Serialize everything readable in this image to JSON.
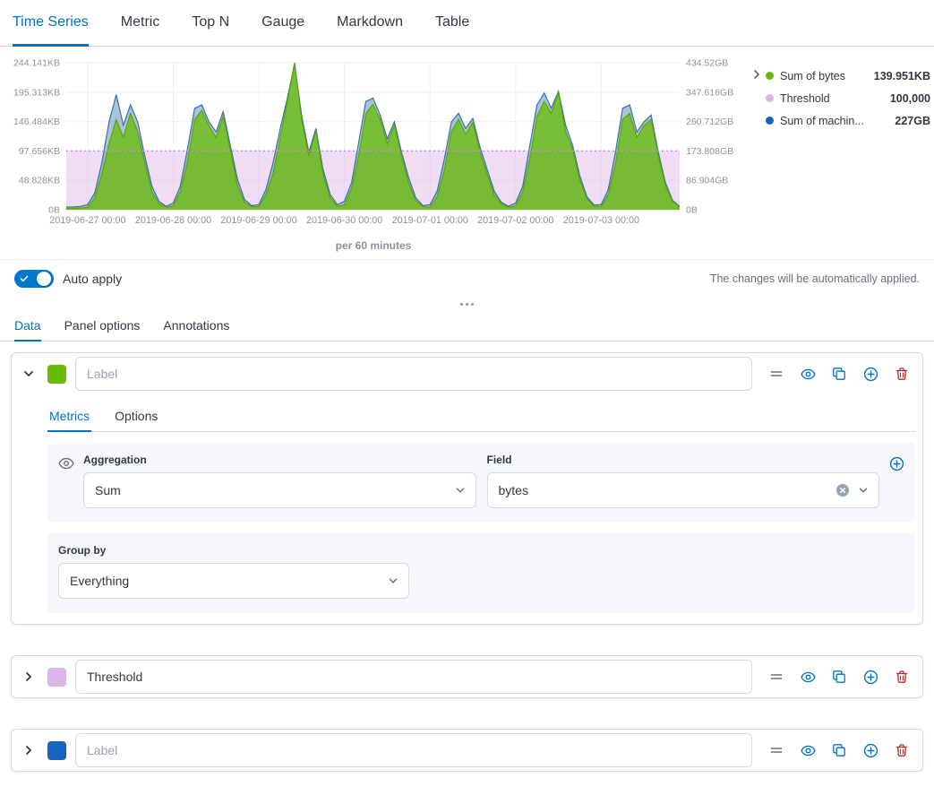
{
  "top_tabs": {
    "items": [
      {
        "label": "Time Series"
      },
      {
        "label": "Metric"
      },
      {
        "label": "Top N"
      },
      {
        "label": "Gauge"
      },
      {
        "label": "Markdown"
      },
      {
        "label": "Table"
      }
    ],
    "active": "Time Series"
  },
  "chart": {
    "caption": "per 60 minutes",
    "legend": {
      "items": [
        {
          "label": "Sum of bytes",
          "value": "139.951KB",
          "color": "#68BC00"
        },
        {
          "label": "Threshold",
          "value": "100,000",
          "color": "#DDB4E6"
        },
        {
          "label": "Sum of machin...",
          "value": "227GB",
          "color": "#1564C0"
        }
      ]
    }
  },
  "chart_data": {
    "type": "area",
    "title": "",
    "x_tick_labels": [
      "2019-06-27 00:00",
      "2019-06-28 00:00",
      "2019-06-29 00:00",
      "2019-06-30 00:00",
      "2019-07-01 00:00",
      "2019-07-02 00:00",
      "2019-07-03 00:00"
    ],
    "tick_indices": [
      3,
      15,
      27,
      39,
      51,
      63,
      75
    ],
    "left_axis": {
      "max": 244.141,
      "unit": "KB",
      "ticks": [
        "244.141KB",
        "195.313KB",
        "146.484KB",
        "97.656KB",
        "48.828KB",
        "0B"
      ]
    },
    "right_axis": {
      "max": 434.52,
      "unit": "GB",
      "ticks": [
        "434.52GB",
        "347.616GB",
        "260.712GB",
        "173.808GB",
        "86.904GB",
        "0B"
      ]
    },
    "threshold": {
      "label": "Threshold",
      "value": 100000,
      "value_left": 97.656,
      "color": "#DDB4E6",
      "line_color": "#C98FD6"
    },
    "series": [
      {
        "name": "Sum of bytes",
        "axis": "left",
        "unit": "KB",
        "color": "#68BC00",
        "line": "#5AA700",
        "values": [
          2,
          2,
          3,
          4,
          20,
          60,
          110,
          150,
          120,
          160,
          130,
          80,
          30,
          10,
          4,
          6,
          30,
          80,
          150,
          165,
          140,
          120,
          155,
          100,
          40,
          12,
          5,
          5,
          25,
          60,
          120,
          180,
          244,
          150,
          90,
          130,
          60,
          20,
          6,
          8,
          35,
          90,
          160,
          175,
          150,
          110,
          140,
          90,
          45,
          15,
          5,
          4,
          22,
          65,
          130,
          150,
          125,
          145,
          95,
          60,
          25,
          10,
          4,
          6,
          30,
          85,
          155,
          180,
          160,
          195,
          130,
          100,
          50,
          18,
          6,
          5,
          25,
          75,
          150,
          160,
          120,
          140,
          150,
          90,
          40,
          14,
          5
        ]
      },
      {
        "name": "Sum of machine.ram",
        "axis": "right",
        "unit": "GB",
        "color": "#6092C0",
        "line": "#3D6FA8",
        "values": [
          8,
          8,
          10,
          15,
          50,
          140,
          260,
          340,
          250,
          310,
          260,
          160,
          70,
          25,
          10,
          20,
          70,
          180,
          300,
          310,
          260,
          230,
          290,
          190,
          90,
          30,
          12,
          15,
          60,
          140,
          240,
          330,
          430,
          280,
          170,
          240,
          120,
          45,
          15,
          25,
          80,
          200,
          320,
          330,
          280,
          210,
          260,
          170,
          95,
          35,
          12,
          15,
          55,
          150,
          260,
          285,
          240,
          270,
          185,
          120,
          55,
          22,
          10,
          20,
          70,
          190,
          310,
          345,
          300,
          350,
          250,
          190,
          100,
          38,
          14,
          15,
          60,
          170,
          300,
          310,
          230,
          260,
          280,
          170,
          80,
          28,
          10
        ]
      }
    ]
  },
  "auto_apply": {
    "label": "Auto apply",
    "note": "The changes will be automatically applied.",
    "enabled": true
  },
  "editor_tabs": {
    "items": [
      {
        "label": "Data"
      },
      {
        "label": "Panel options"
      },
      {
        "label": "Annotations"
      }
    ],
    "active": "Data"
  },
  "series_panels": [
    {
      "color": "#68BC00",
      "label_placeholder": "Label",
      "label_value": "",
      "expanded": true,
      "tabs": [
        {
          "label": "Metrics"
        },
        {
          "label": "Options"
        }
      ],
      "active_tab": "Metrics",
      "aggregation_label": "Aggregation",
      "aggregation_value": "Sum",
      "field_label": "Field",
      "field_value": "bytes",
      "group_by_label": "Group by",
      "group_by_value": "Everything"
    },
    {
      "color": "#DDB4E6",
      "label_placeholder": "Label",
      "label_value": "Threshold",
      "expanded": false
    },
    {
      "color": "#1564C0",
      "label_placeholder": "Label",
      "label_value": "",
      "expanded": false
    }
  ]
}
